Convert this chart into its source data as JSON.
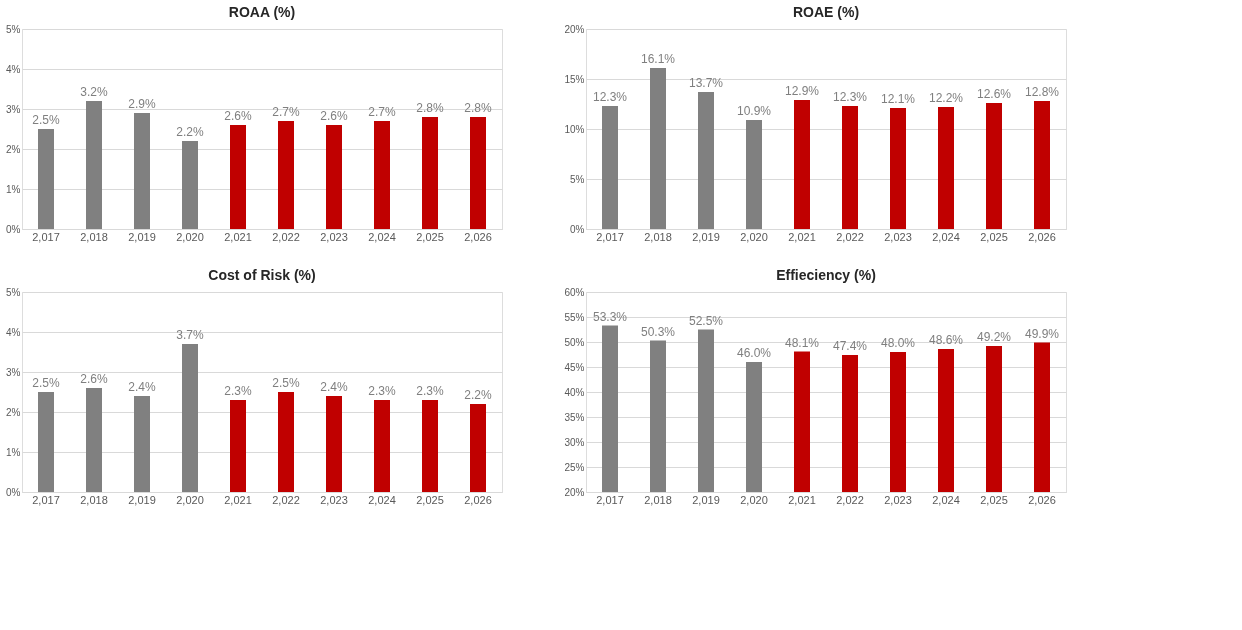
{
  "chart_data": [
    {
      "type": "bar",
      "title": "ROAA (%)",
      "categories": [
        "2,017",
        "2,018",
        "2,019",
        "2,020",
        "2,021",
        "2,022",
        "2,023",
        "2,024",
        "2,025",
        "2,026"
      ],
      "values": [
        2.5,
        3.2,
        2.9,
        2.2,
        2.6,
        2.7,
        2.6,
        2.7,
        2.8,
        2.8
      ],
      "value_labels": [
        "2.5%",
        "3.2%",
        "2.9%",
        "2.2%",
        "2.6%",
        "2.7%",
        "2.6%",
        "2.7%",
        "2.8%",
        "2.8%"
      ],
      "colors": [
        "#808080",
        "#808080",
        "#808080",
        "#808080",
        "#c00000",
        "#c00000",
        "#c00000",
        "#c00000",
        "#c00000",
        "#c00000"
      ],
      "ylim": [
        0,
        5
      ],
      "yticks": [
        {
          "value": 0,
          "label": "0%"
        },
        {
          "value": 1,
          "label": "1%"
        },
        {
          "value": 2,
          "label": "2%"
        },
        {
          "value": 3,
          "label": "3%"
        },
        {
          "value": 4,
          "label": "4%"
        },
        {
          "value": 5,
          "label": "5%"
        }
      ],
      "grid": "y"
    },
    {
      "type": "bar",
      "title": "ROAE (%)",
      "categories": [
        "2,017",
        "2,018",
        "2,019",
        "2,020",
        "2,021",
        "2,022",
        "2,023",
        "2,024",
        "2,025",
        "2,026"
      ],
      "values": [
        12.3,
        16.1,
        13.7,
        10.9,
        12.9,
        12.3,
        12.1,
        12.2,
        12.6,
        12.8
      ],
      "value_labels": [
        "12.3%",
        "16.1%",
        "13.7%",
        "10.9%",
        "12.9%",
        "12.3%",
        "12.1%",
        "12.2%",
        "12.6%",
        "12.8%"
      ],
      "colors": [
        "#808080",
        "#808080",
        "#808080",
        "#808080",
        "#c00000",
        "#c00000",
        "#c00000",
        "#c00000",
        "#c00000",
        "#c00000"
      ],
      "ylim": [
        0,
        20
      ],
      "yticks": [
        {
          "value": 0,
          "label": "0%"
        },
        {
          "value": 5,
          "label": "5%"
        },
        {
          "value": 10,
          "label": "10%"
        },
        {
          "value": 15,
          "label": "15%"
        },
        {
          "value": 20,
          "label": "20%"
        }
      ],
      "grid": "y"
    },
    {
      "type": "bar",
      "title": "Cost of Risk (%)",
      "categories": [
        "2,017",
        "2,018",
        "2,019",
        "2,020",
        "2,021",
        "2,022",
        "2,023",
        "2,024",
        "2,025",
        "2,026"
      ],
      "values": [
        2.5,
        2.6,
        2.4,
        3.7,
        2.3,
        2.5,
        2.4,
        2.3,
        2.3,
        2.2
      ],
      "value_labels": [
        "2.5%",
        "2.6%",
        "2.4%",
        "3.7%",
        "2.3%",
        "2.5%",
        "2.4%",
        "2.3%",
        "2.3%",
        "2.2%"
      ],
      "colors": [
        "#808080",
        "#808080",
        "#808080",
        "#808080",
        "#c00000",
        "#c00000",
        "#c00000",
        "#c00000",
        "#c00000",
        "#c00000"
      ],
      "ylim": [
        0,
        5
      ],
      "yticks": [
        {
          "value": 0,
          "label": "0%"
        },
        {
          "value": 1,
          "label": "1%"
        },
        {
          "value": 2,
          "label": "2%"
        },
        {
          "value": 3,
          "label": "3%"
        },
        {
          "value": 4,
          "label": "4%"
        },
        {
          "value": 5,
          "label": "5%"
        }
      ],
      "grid": "y"
    },
    {
      "type": "bar",
      "title": "Effieciency (%)",
      "categories": [
        "2,017",
        "2,018",
        "2,019",
        "2,020",
        "2,021",
        "2,022",
        "2,023",
        "2,024",
        "2,025",
        "2,026"
      ],
      "values": [
        53.3,
        50.3,
        52.5,
        46.0,
        48.1,
        47.4,
        48.0,
        48.6,
        49.2,
        49.9
      ],
      "value_labels": [
        "53.3%",
        "50.3%",
        "52.5%",
        "46.0%",
        "48.1%",
        "47.4%",
        "48.0%",
        "48.6%",
        "49.2%",
        "49.9%"
      ],
      "colors": [
        "#808080",
        "#808080",
        "#808080",
        "#808080",
        "#c00000",
        "#c00000",
        "#c00000",
        "#c00000",
        "#c00000",
        "#c00000"
      ],
      "ylim": [
        20,
        60
      ],
      "yticks": [
        {
          "value": 20,
          "label": "20%"
        },
        {
          "value": 25,
          "label": "25%"
        },
        {
          "value": 30,
          "label": "30%"
        },
        {
          "value": 35,
          "label": "35%"
        },
        {
          "value": 40,
          "label": "40%"
        },
        {
          "value": 45,
          "label": "45%"
        },
        {
          "value": 50,
          "label": "50%"
        },
        {
          "value": 55,
          "label": "55%"
        },
        {
          "value": 60,
          "label": "60%"
        }
      ],
      "grid": "y"
    }
  ]
}
